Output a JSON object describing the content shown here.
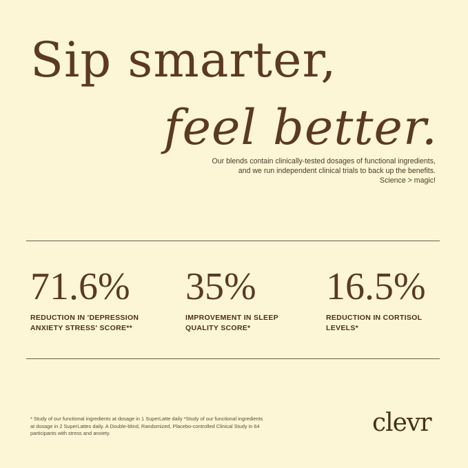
{
  "headline": {
    "line1": "Sip smarter,",
    "line2": "feel better."
  },
  "subtext": [
    "Our blends contain clinically-tested dosages of functional ingredients,",
    "and we run independent clinical trials to back up the benefits.",
    "Science > magic!"
  ],
  "stats": [
    {
      "value": "71.6%",
      "label_line1": "REDUCTION IN 'DEPRESSION",
      "label_line2": "ANXIETY STRESS' SCORE**"
    },
    {
      "value": "35%",
      "label_line1": "IMPROVEMENT IN SLEEP",
      "label_line2": "QUALITY SCORE*"
    },
    {
      "value": "16.5%",
      "label_line1": "REDUCTION IN CORTISOL",
      "label_line2": "LEVELS*"
    }
  ],
  "footnote": [
    "* Study of our functional ingredients at dosage in 1 SuperLatte daily *Study of our functional ingredients",
    "at dosage in 2 SuperLattes daily. A Double-blind, Randomized, Placebo-controlled Clinical Study in 64",
    "participants with stress and anxiety."
  ],
  "brand": {
    "logo": "clevr"
  },
  "colors": {
    "background": "#fcf6d6",
    "brown": "#5b3a20"
  }
}
